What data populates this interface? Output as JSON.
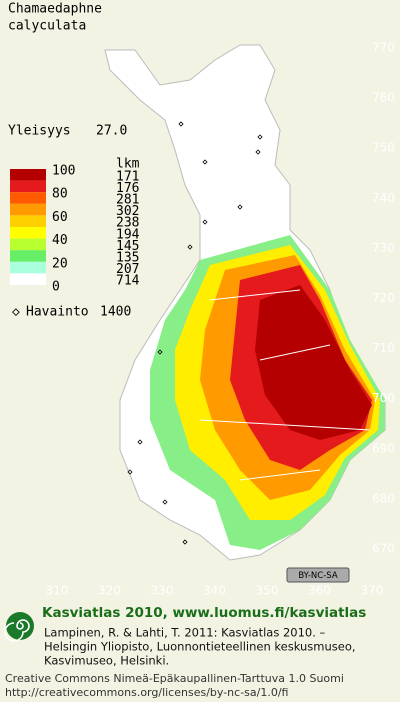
{
  "header": {
    "species": [
      "Chamaedaphne",
      "calyculata"
    ]
  },
  "frequency": {
    "label": "Yleisyys",
    "value": "27.0"
  },
  "legend": {
    "count_header": "lkm",
    "levels": [
      100,
      80,
      60,
      40,
      20,
      0
    ],
    "classes": [
      {
        "count": 171,
        "color": "#b40000"
      },
      {
        "count": 176,
        "color": "#e41a1c"
      },
      {
        "count": 281,
        "color": "#ff5a00"
      },
      {
        "count": 302,
        "color": "#ff9a00"
      },
      {
        "count": 238,
        "color": "#ffd000"
      },
      {
        "count": 194,
        "color": "#ffff00"
      },
      {
        "count": 145,
        "color": "#b8ff30"
      },
      {
        "count": 135,
        "color": "#66ee66"
      },
      {
        "count": 207,
        "color": "#aaffdd"
      },
      {
        "count": 714,
        "color": "#ffffff"
      }
    ]
  },
  "observations": {
    "label": "Havainto",
    "value": 1400
  },
  "map_axes": {
    "yticks": [
      770,
      760,
      750,
      740,
      730,
      720,
      710,
      700,
      690,
      680,
      670
    ],
    "xticks": [
      310,
      320,
      330,
      340,
      350,
      360,
      370
    ]
  },
  "license_badge": "BY-NC-SA",
  "footer": {
    "title": "Kasviatlas 2010, www.luomus.fi/kasviatlas",
    "citation": [
      "Lampinen, R. & Lahti, T. 2011: Kasviatlas 2010. –",
      "Helsingin Yliopisto, Luonnontieteellinen keskusmuseo,",
      "Kasvimuseo, Helsinki."
    ],
    "license": [
      "Creative Commons Nimeä-Epäkaupallinen-Tarttuva 1.0 Suomi",
      "http://creativecommons.org/licenses/by-nc-sa/1.0/fi"
    ]
  }
}
